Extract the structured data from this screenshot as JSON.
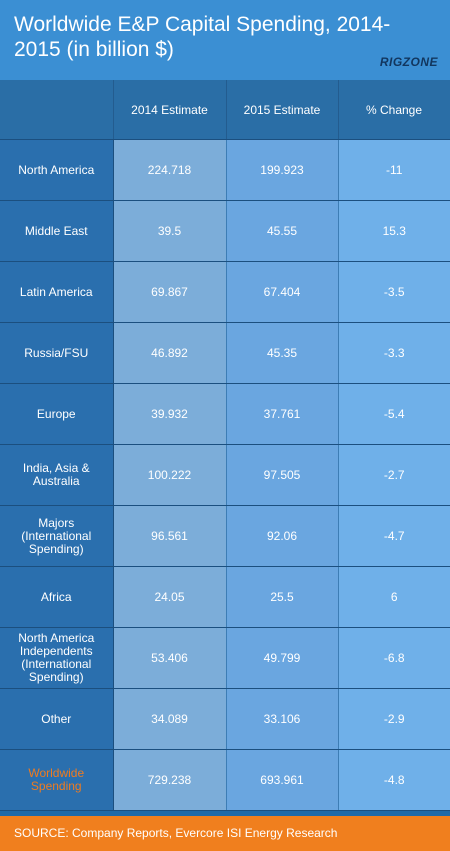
{
  "header": {
    "title": "Worldwide E&P Capital Spending, 2014-2015 (in billion $)",
    "logo_text": "RIGZONE"
  },
  "colors": {
    "header_bg": "#3b8fd3",
    "label_col_bg": "#2a6fae",
    "value_bg": "#7cadd9",
    "accent_orange": "#f07f1e"
  },
  "chart_data": {
    "type": "table",
    "title": "Worldwide E&P Capital Spending, 2014-2015 (in billion $)",
    "columns": [
      "",
      "2014 Estimate",
      "2015 Estimate",
      "% Change"
    ],
    "rows": [
      {
        "label": "North America",
        "v2014": "224.718",
        "v2015": "199.923",
        "change": "-11"
      },
      {
        "label": "Middle East",
        "v2014": "39.5",
        "v2015": "45.55",
        "change": "15.3"
      },
      {
        "label": "Latin America",
        "v2014": "69.867",
        "v2015": "67.404",
        "change": "-3.5"
      },
      {
        "label": "Russia/FSU",
        "v2014": "46.892",
        "v2015": "45.35",
        "change": "-3.3"
      },
      {
        "label": "Europe",
        "v2014": "39.932",
        "v2015": "37.761",
        "change": "-5.4"
      },
      {
        "label": "India, Asia & Australia",
        "v2014": "100.222",
        "v2015": "97.505",
        "change": "-2.7"
      },
      {
        "label": "Majors (International Spending)",
        "v2014": "96.561",
        "v2015": "92.06",
        "change": "-4.7"
      },
      {
        "label": "Africa",
        "v2014": "24.05",
        "v2015": "25.5",
        "change": "6"
      },
      {
        "label": "North America Independents (International Spending)",
        "v2014": "53.406",
        "v2015": "49.799",
        "change": "-6.8"
      },
      {
        "label": "Other",
        "v2014": "34.089",
        "v2015": "33.106",
        "change": "-2.9"
      },
      {
        "label": "Worldwide Spending",
        "v2014": "729.238",
        "v2015": "693.961",
        "change": "-4.8"
      }
    ]
  },
  "footer": {
    "source": "SOURCE: Company Reports, Evercore ISI Energy Research"
  }
}
